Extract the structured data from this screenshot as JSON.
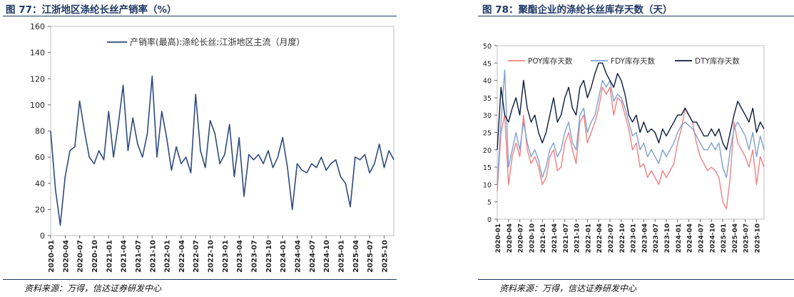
{
  "figures": {
    "left_title": "图 77：江浙地区涤纶长丝产销率（%）",
    "right_title": "图 78：聚酯企业的涤纶长丝库存天数（天）",
    "left_source": "资料来源：万得，信达证券研发中心",
    "right_source": "资料来源：万得，信达证券研发中心"
  },
  "colors": {
    "title": "#1f3864",
    "series_left": "#2e4a7d",
    "poy": "#f08080",
    "fdy": "#7f9fd0",
    "dty": "#0b1a3a"
  },
  "chart_data": [
    {
      "type": "line",
      "title": "",
      "xlabel": "",
      "ylabel": "",
      "ylim": [
        0,
        160
      ],
      "yticks": [
        "0",
        "20",
        "40",
        "60",
        "80",
        "100",
        "120",
        "140",
        "160"
      ],
      "xlim": [
        "2020-01",
        "2025-12"
      ],
      "xticks": [
        "2020-01",
        "2020-04",
        "2020-07",
        "2020-10",
        "2021-01",
        "2021-04",
        "2021-07",
        "2021-10",
        "2022-01",
        "2022-04",
        "2022-07",
        "2022-10",
        "2023-01",
        "2023-04",
        "2023-07",
        "2023-10",
        "2024-01",
        "2024-04",
        "2024-07",
        "2024-10",
        "2025-01",
        "2025-04",
        "2025-07",
        "2025-10"
      ],
      "legend_position": "top-center",
      "grid": false,
      "series": [
        {
          "name": "产销率(最高):涤纶长丝:江浙地区主流（月度）",
          "x": [
            "2020-01",
            "2020-02",
            "2020-03",
            "2020-04",
            "2020-05",
            "2020-06",
            "2020-07",
            "2020-08",
            "2020-09",
            "2020-10",
            "2020-11",
            "2020-12",
            "2021-01",
            "2021-02",
            "2021-03",
            "2021-04",
            "2021-05",
            "2021-06",
            "2021-07",
            "2021-08",
            "2021-09",
            "2021-10",
            "2021-11",
            "2021-12",
            "2022-01",
            "2022-02",
            "2022-03",
            "2022-04",
            "2022-05",
            "2022-06",
            "2022-07",
            "2022-08",
            "2022-09",
            "2022-10",
            "2022-11",
            "2022-12",
            "2023-01",
            "2023-02",
            "2023-03",
            "2023-04",
            "2023-05",
            "2023-06",
            "2023-07",
            "2023-08",
            "2023-09",
            "2023-10",
            "2023-11",
            "2023-12",
            "2024-01",
            "2024-02",
            "2024-03",
            "2024-04",
            "2024-05",
            "2024-06",
            "2024-07",
            "2024-08",
            "2024-09",
            "2024-10",
            "2024-11",
            "2024-12",
            "2025-01",
            "2025-02",
            "2025-03",
            "2025-04",
            "2025-05",
            "2025-06",
            "2025-07",
            "2025-08",
            "2025-09",
            "2025-10",
            "2025-11",
            "2025-12"
          ],
          "values": [
            80,
            35,
            8,
            45,
            65,
            68,
            103,
            80,
            60,
            55,
            65,
            58,
            95,
            60,
            85,
            115,
            65,
            90,
            70,
            60,
            78,
            122,
            60,
            95,
            75,
            50,
            68,
            55,
            60,
            48,
            108,
            65,
            52,
            88,
            78,
            55,
            62,
            85,
            45,
            75,
            30,
            62,
            58,
            62,
            55,
            65,
            52,
            60,
            75,
            52,
            20,
            55,
            50,
            48,
            55,
            52,
            60,
            50,
            55,
            58,
            45,
            40,
            22,
            60,
            58,
            62,
            48,
            55,
            70,
            52,
            65,
            58
          ]
        }
      ]
    },
    {
      "type": "line",
      "title": "",
      "xlabel": "",
      "ylabel": "",
      "ylim": [
        0,
        50
      ],
      "yticks": [
        "0",
        "5",
        "10",
        "15",
        "20",
        "25",
        "30",
        "35",
        "40",
        "45",
        "50"
      ],
      "xlim": [
        "2020-01",
        "2025-12"
      ],
      "xticks": [
        "2020-01",
        "2020-04",
        "2020-07",
        "2020-10",
        "2021-01",
        "2021-04",
        "2021-07",
        "2021-10",
        "2022-01",
        "2022-04",
        "2022-07",
        "2022-10",
        "2023-01",
        "2023-04",
        "2023-07",
        "2023-10",
        "2024-01",
        "2024-04",
        "2024-07",
        "2024-10",
        "2025-01",
        "2025-04",
        "2025-07",
        "2025-10"
      ],
      "legend_position": "top",
      "grid": false,
      "series": [
        {
          "name": "POY库存天数",
          "x": [
            "2020-01",
            "2020-02",
            "2020-03",
            "2020-04",
            "2020-05",
            "2020-06",
            "2020-07",
            "2020-08",
            "2020-09",
            "2020-10",
            "2020-11",
            "2020-12",
            "2021-01",
            "2021-02",
            "2021-03",
            "2021-04",
            "2021-05",
            "2021-06",
            "2021-07",
            "2021-08",
            "2021-09",
            "2021-10",
            "2021-11",
            "2021-12",
            "2022-01",
            "2022-02",
            "2022-03",
            "2022-04",
            "2022-05",
            "2022-06",
            "2022-07",
            "2022-08",
            "2022-09",
            "2022-10",
            "2022-11",
            "2022-12",
            "2023-01",
            "2023-02",
            "2023-03",
            "2023-04",
            "2023-05",
            "2023-06",
            "2023-07",
            "2023-08",
            "2023-09",
            "2023-10",
            "2023-11",
            "2023-12",
            "2024-01",
            "2024-02",
            "2024-03",
            "2024-04",
            "2024-05",
            "2024-06",
            "2024-07",
            "2024-08",
            "2024-09",
            "2024-10",
            "2024-11",
            "2024-12",
            "2025-01",
            "2025-02",
            "2025-03",
            "2025-04",
            "2025-05",
            "2025-06",
            "2025-07",
            "2025-08",
            "2025-09",
            "2025-10",
            "2025-11",
            "2025-12"
          ],
          "values": [
            8,
            25,
            30,
            10,
            18,
            22,
            18,
            30,
            20,
            16,
            18,
            15,
            10,
            12,
            18,
            20,
            14,
            15,
            22,
            25,
            20,
            16,
            28,
            30,
            22,
            25,
            28,
            32,
            38,
            36,
            38,
            30,
            35,
            34,
            30,
            26,
            20,
            22,
            15,
            16,
            12,
            14,
            12,
            10,
            14,
            12,
            14,
            16,
            22,
            26,
            32,
            30,
            28,
            22,
            18,
            16,
            14,
            15,
            14,
            12,
            5,
            3,
            12,
            28,
            22,
            20,
            18,
            15,
            20,
            10,
            18,
            15
          ]
        },
        {
          "name": "FDY库存天数",
          "x": [
            "2020-01",
            "2020-02",
            "2020-03",
            "2020-04",
            "2020-05",
            "2020-06",
            "2020-07",
            "2020-08",
            "2020-09",
            "2020-10",
            "2020-11",
            "2020-12",
            "2021-01",
            "2021-02",
            "2021-03",
            "2021-04",
            "2021-05",
            "2021-06",
            "2021-07",
            "2021-08",
            "2021-09",
            "2021-10",
            "2021-11",
            "2021-12",
            "2022-01",
            "2022-02",
            "2022-03",
            "2022-04",
            "2022-05",
            "2022-06",
            "2022-07",
            "2022-08",
            "2022-09",
            "2022-10",
            "2022-11",
            "2022-12",
            "2023-01",
            "2023-02",
            "2023-03",
            "2023-04",
            "2023-05",
            "2023-06",
            "2023-07",
            "2023-08",
            "2023-09",
            "2023-10",
            "2023-11",
            "2023-12",
            "2024-01",
            "2024-02",
            "2024-03",
            "2024-04",
            "2024-05",
            "2024-06",
            "2024-07",
            "2024-08",
            "2024-09",
            "2024-10",
            "2024-11",
            "2024-12",
            "2025-01",
            "2025-02",
            "2025-03",
            "2025-04",
            "2025-05",
            "2025-06",
            "2025-07",
            "2025-08",
            "2025-09",
            "2025-10",
            "2025-11",
            "2025-12"
          ],
          "values": [
            10,
            28,
            43,
            15,
            20,
            25,
            20,
            28,
            22,
            18,
            20,
            17,
            12,
            15,
            20,
            22,
            18,
            20,
            25,
            28,
            22,
            20,
            30,
            32,
            25,
            28,
            30,
            35,
            40,
            38,
            40,
            34,
            36,
            35,
            32,
            28,
            24,
            25,
            20,
            22,
            18,
            20,
            18,
            16,
            20,
            18,
            20,
            22,
            25,
            27,
            28,
            27,
            26,
            24,
            22,
            20,
            20,
            22,
            20,
            22,
            15,
            12,
            20,
            26,
            28,
            26,
            24,
            20,
            25,
            18,
            24,
            20
          ]
        },
        {
          "name": "DTY库存天数",
          "x": [
            "2020-01",
            "2020-02",
            "2020-03",
            "2020-04",
            "2020-05",
            "2020-06",
            "2020-07",
            "2020-08",
            "2020-09",
            "2020-10",
            "2020-11",
            "2020-12",
            "2021-01",
            "2021-02",
            "2021-03",
            "2021-04",
            "2021-05",
            "2021-06",
            "2021-07",
            "2021-08",
            "2021-09",
            "2021-10",
            "2021-11",
            "2021-12",
            "2022-01",
            "2022-02",
            "2022-03",
            "2022-04",
            "2022-05",
            "2022-06",
            "2022-07",
            "2022-08",
            "2022-09",
            "2022-10",
            "2022-11",
            "2022-12",
            "2023-01",
            "2023-02",
            "2023-03",
            "2023-04",
            "2023-05",
            "2023-06",
            "2023-07",
            "2023-08",
            "2023-09",
            "2023-10",
            "2023-11",
            "2023-12",
            "2024-01",
            "2024-02",
            "2024-03",
            "2024-04",
            "2024-05",
            "2024-06",
            "2024-07",
            "2024-08",
            "2024-09",
            "2024-10",
            "2024-11",
            "2024-12",
            "2025-01",
            "2025-02",
            "2025-03",
            "2025-04",
            "2025-05",
            "2025-06",
            "2025-07",
            "2025-08",
            "2025-09",
            "2025-10",
            "2025-11",
            "2025-12"
          ],
          "values": [
            20,
            38,
            30,
            28,
            32,
            35,
            30,
            40,
            32,
            28,
            30,
            25,
            22,
            25,
            30,
            35,
            28,
            30,
            35,
            38,
            32,
            30,
            38,
            40,
            35,
            38,
            42,
            45,
            45,
            42,
            40,
            38,
            42,
            40,
            36,
            30,
            28,
            30,
            25,
            28,
            25,
            26,
            25,
            22,
            26,
            24,
            26,
            28,
            30,
            30,
            32,
            30,
            28,
            28,
            26,
            24,
            24,
            26,
            24,
            26,
            22,
            20,
            25,
            30,
            34,
            32,
            30,
            28,
            32,
            25,
            28,
            26
          ]
        }
      ]
    }
  ]
}
